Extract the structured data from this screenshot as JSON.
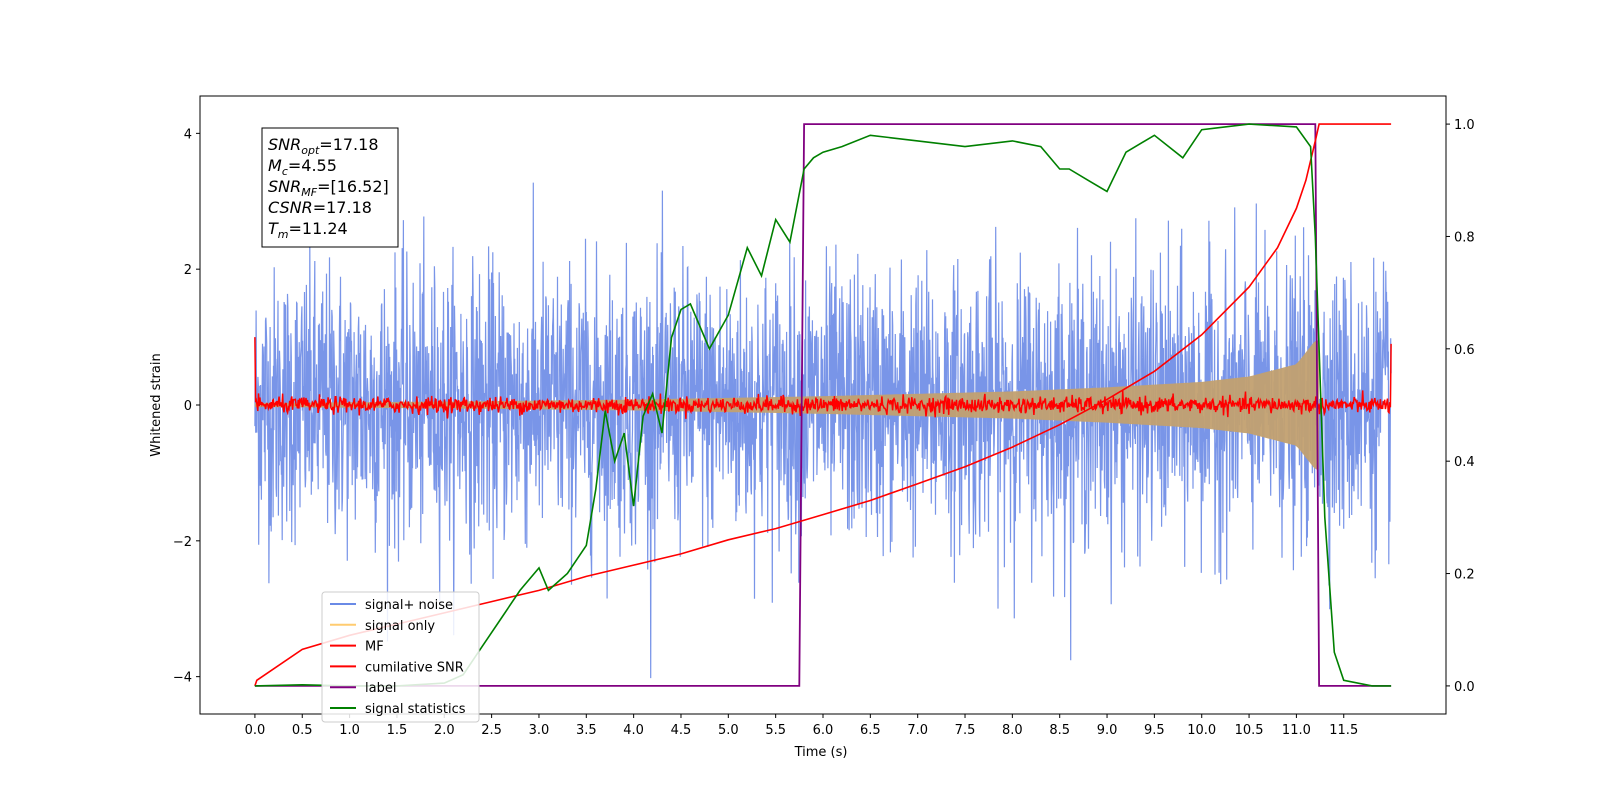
{
  "chart_data": {
    "type": "line",
    "xlabel": "Time (s)",
    "ylabel": "Whitened strain",
    "xlim": [
      -0.58,
      12.58
    ],
    "ylim_left": [
      -4.55,
      4.55
    ],
    "ylim_right": [
      -0.05,
      1.05
    ],
    "x_ticks": [
      0.0,
      0.5,
      1.0,
      1.5,
      2.0,
      2.5,
      3.0,
      3.5,
      4.0,
      4.5,
      5.0,
      5.5,
      6.0,
      6.5,
      7.0,
      7.5,
      8.0,
      8.5,
      9.0,
      9.5,
      10.0,
      10.5,
      11.0,
      11.5
    ],
    "x_tick_labels": [
      "0.0",
      "0.5",
      "1.0",
      "1.5",
      "2.0",
      "2.5",
      "3.0",
      "3.5",
      "4.0",
      "4.5",
      "5.0",
      "5.5",
      "6.0",
      "6.5",
      "7.0",
      "7.5",
      "8.0",
      "8.5",
      "9.0",
      "9.5",
      "10.0",
      "10.5",
      "11.0",
      "11.5"
    ],
    "y_ticks_left": [
      -4,
      -2,
      0,
      2,
      4
    ],
    "y_tick_labels_left": [
      "−4",
      "−2",
      "0",
      "2",
      "4"
    ],
    "y_ticks_right": [
      0.0,
      0.2,
      0.4,
      0.6,
      0.8,
      1.0
    ],
    "y_tick_labels_right": [
      "0.0",
      "0.2",
      "0.4",
      "0.6",
      "0.8",
      "1.0"
    ],
    "grid": false,
    "legend_position": "lower-left",
    "stats_box": [
      {
        "base": "SNR",
        "sub": "opt",
        "value": "=17.18"
      },
      {
        "base": "M",
        "sub": "c",
        "value": "=4.55"
      },
      {
        "base": "SNR",
        "sub": "MF",
        "value": "=[16.52]"
      },
      {
        "base": "CSNR",
        "sub": "",
        "value": "=17.18"
      },
      {
        "base": "T",
        "sub": "m",
        "value": "=11.24"
      }
    ],
    "series": [
      {
        "name": "signal+ noise",
        "axis": "left",
        "color": "#6a8ae6",
        "kind": "noise-band",
        "x_range": [
          0.0,
          12.0
        ],
        "typical_amplitude": 1.0,
        "peak_amplitude": 4.1
      },
      {
        "name": "signal only",
        "axis": "left",
        "color": "#ffcc70",
        "kind": "chirp-envelope",
        "x_range": [
          0.0,
          11.24
        ],
        "envelope_x": [
          0.0,
          2.0,
          4.0,
          6.0,
          8.0,
          9.0,
          10.0,
          10.5,
          11.0,
          11.2
        ],
        "envelope_y": [
          0.03,
          0.05,
          0.08,
          0.13,
          0.2,
          0.26,
          0.34,
          0.42,
          0.6,
          0.95
        ]
      },
      {
        "name": "MF",
        "axis": "left",
        "color": "#ff0000",
        "kind": "noise-near-zero",
        "x_range": [
          0.0,
          12.0
        ],
        "typical_amplitude": 0.06
      },
      {
        "name": "cumilative SNR",
        "axis": "right",
        "color": "#ff0000",
        "x": [
          0.0,
          0.02,
          0.5,
          1.0,
          1.5,
          2.0,
          2.5,
          3.0,
          3.5,
          4.0,
          4.5,
          5.0,
          5.5,
          6.0,
          6.5,
          7.0,
          7.5,
          8.0,
          8.5,
          9.0,
          9.5,
          10.0,
          10.5,
          10.8,
          11.0,
          11.1,
          11.2,
          11.24,
          11.3,
          12.0
        ],
        "y": [
          0.0,
          0.01,
          0.065,
          0.09,
          0.11,
          0.13,
          0.15,
          0.17,
          0.195,
          0.215,
          0.235,
          0.26,
          0.28,
          0.305,
          0.33,
          0.36,
          0.39,
          0.425,
          0.465,
          0.51,
          0.56,
          0.625,
          0.71,
          0.78,
          0.85,
          0.9,
          0.97,
          1.0,
          1.0,
          1.0
        ]
      },
      {
        "name": "label",
        "axis": "right",
        "color": "#800080",
        "x": [
          0.0,
          5.75,
          5.8,
          11.2,
          11.24,
          12.0
        ],
        "y": [
          0.0,
          0.0,
          1.0,
          1.0,
          0.0,
          0.0
        ]
      },
      {
        "name": "signal statistics",
        "axis": "right",
        "color": "#008000",
        "x": [
          0.0,
          0.5,
          1.0,
          1.5,
          2.0,
          2.2,
          2.4,
          2.6,
          2.8,
          3.0,
          3.1,
          3.3,
          3.5,
          3.6,
          3.7,
          3.8,
          3.9,
          4.0,
          4.1,
          4.2,
          4.3,
          4.4,
          4.5,
          4.6,
          4.8,
          5.0,
          5.2,
          5.35,
          5.5,
          5.65,
          5.8,
          5.9,
          6.0,
          6.2,
          6.5,
          7.0,
          7.5,
          8.0,
          8.3,
          8.5,
          8.6,
          8.8,
          9.0,
          9.2,
          9.5,
          9.8,
          10.0,
          10.5,
          11.0,
          11.15,
          11.2,
          11.3,
          11.4,
          11.5,
          11.8,
          12.0
        ],
        "y": [
          0.0,
          0.002,
          0.0,
          0.0,
          0.005,
          0.02,
          0.07,
          0.12,
          0.17,
          0.21,
          0.17,
          0.2,
          0.25,
          0.35,
          0.49,
          0.4,
          0.45,
          0.32,
          0.48,
          0.52,
          0.45,
          0.62,
          0.67,
          0.68,
          0.6,
          0.66,
          0.78,
          0.73,
          0.83,
          0.79,
          0.92,
          0.94,
          0.95,
          0.96,
          0.98,
          0.97,
          0.96,
          0.97,
          0.96,
          0.92,
          0.92,
          0.9,
          0.88,
          0.95,
          0.98,
          0.94,
          0.99,
          1.0,
          0.995,
          0.96,
          0.8,
          0.3,
          0.06,
          0.01,
          0.0,
          0.0
        ]
      }
    ]
  }
}
